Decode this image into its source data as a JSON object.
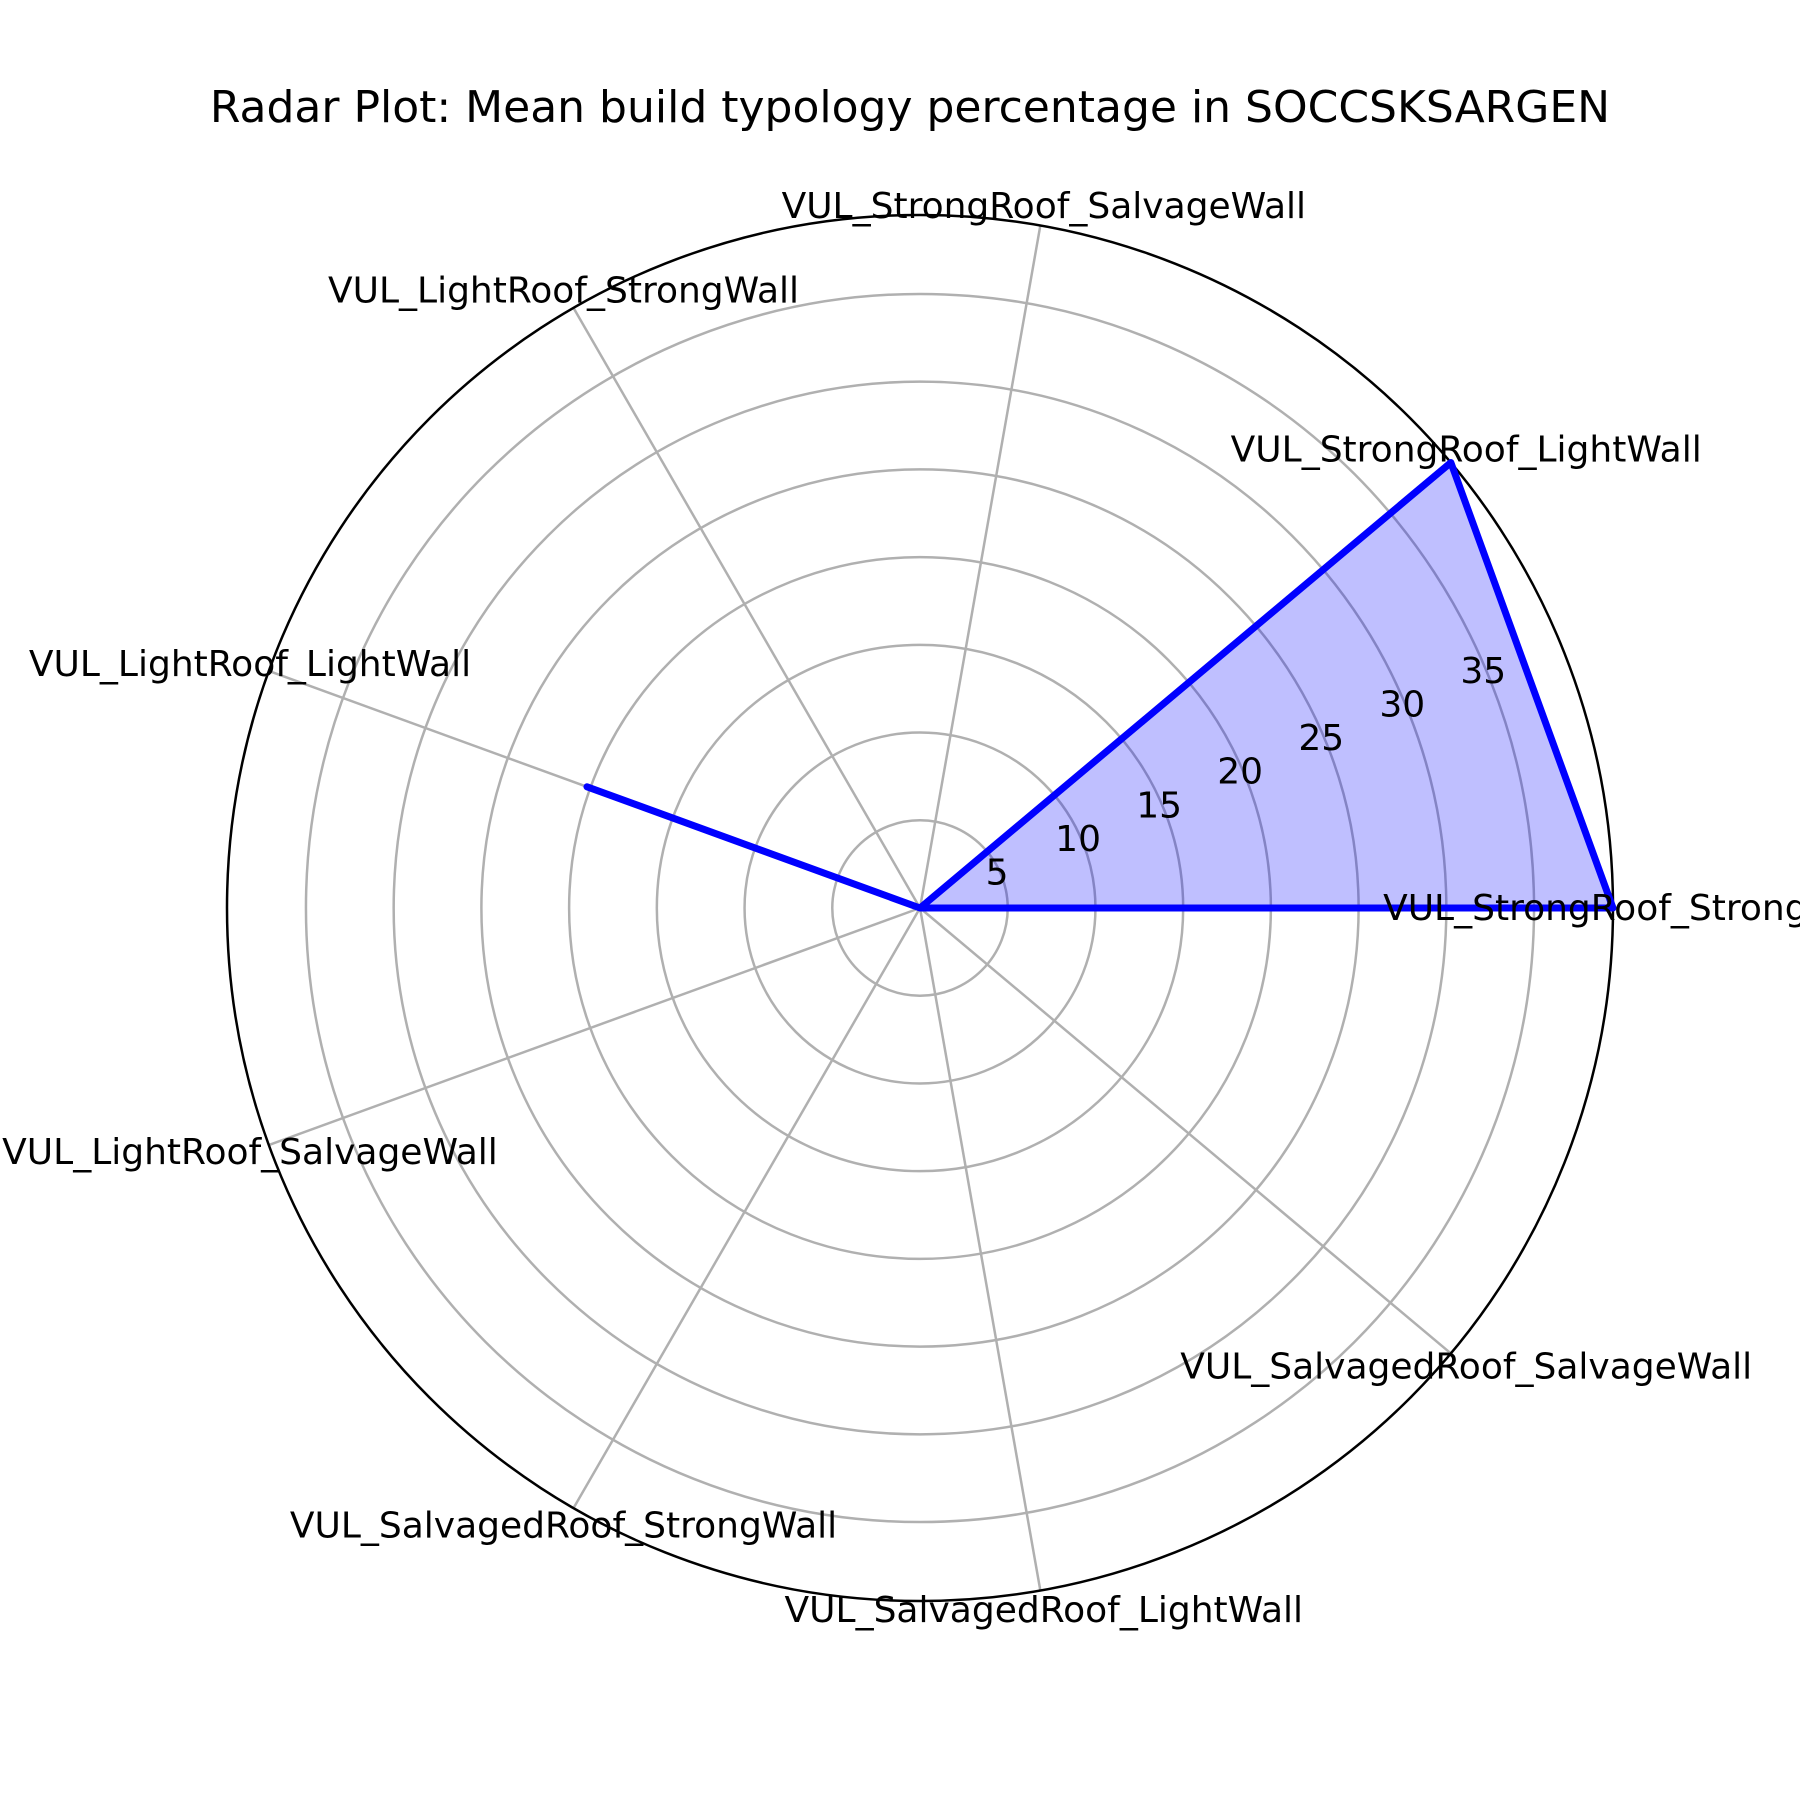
{
  "chart_data": {
    "type": "radar",
    "title": "Radar Plot: Mean build typology percentage in SOCCSKSARGEN",
    "categories": [
      "VUL_StrongRoof_StrongWall",
      "VUL_StrongRoof_LightWall",
      "VUL_StrongRoof_SalvageWall",
      "VUL_LightRoof_StrongWall",
      "VUL_LightRoof_LightWall",
      "VUL_LightRoof_SalvageWall",
      "VUL_SalvagedRoof_StrongWall",
      "VUL_SalvagedRoof_LightWall",
      "VUL_SalvagedRoof_SalvageWall"
    ],
    "values": [
      39.5,
      39.5,
      0,
      0,
      20.2,
      0,
      0,
      0,
      0
    ],
    "r_ticks": [
      5,
      10,
      15,
      20,
      25,
      30,
      35
    ],
    "rlim": [
      0,
      39.5
    ],
    "grid": true,
    "colors": {
      "line": "#0000ff",
      "fill": "#0000ff",
      "fill_opacity": 0.25,
      "grid": "#b0b0b0"
    }
  }
}
